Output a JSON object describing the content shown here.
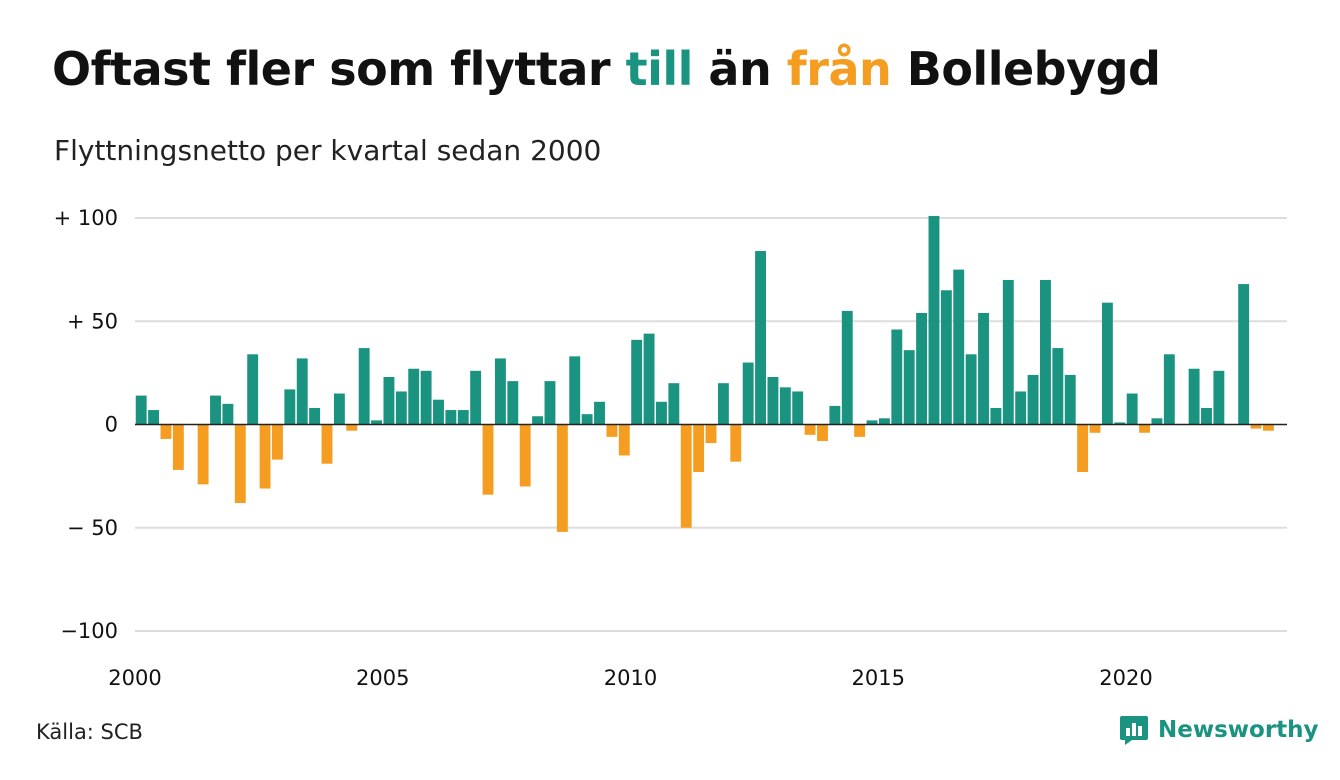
{
  "title": {
    "part1": "Oftast fler som flyttar ",
    "highlight_in": "till",
    "part2": " än ",
    "highlight_out": "från",
    "part3": " Bollebygd"
  },
  "subtitle": "Flyttningsnetto per kvartal sedan 2000",
  "source": "Källa: SCB",
  "brand": {
    "name": "Newsworthy",
    "icon": "newsworthy-chart-bubble-icon"
  },
  "colors": {
    "positive": "#1a9380",
    "negative": "#f59d21",
    "grid": "#dddddd",
    "zero": "#222222"
  },
  "chart_data": {
    "type": "bar",
    "title": "Oftast fler som flyttar till än från Bollebygd",
    "subtitle": "Flyttningsnetto per kvartal sedan 2000",
    "x_start": 2000,
    "x_step": 0.25,
    "xlim": [
      2000,
      2023.25
    ],
    "ylim": [
      -100,
      100
    ],
    "x_ticks": [
      2000,
      2005,
      2010,
      2015,
      2020
    ],
    "x_tick_labels": [
      "2000",
      "2005",
      "2010",
      "2015",
      "2020"
    ],
    "y_ticks": [
      100,
      50,
      0,
      -50,
      -100
    ],
    "y_tick_labels": [
      "+ 100",
      "+  50",
      "0",
      "− 50",
      "−100"
    ],
    "grid": true,
    "values": [
      14,
      7,
      -7,
      -22,
      0,
      -29,
      14,
      10,
      -38,
      34,
      -31,
      -17,
      17,
      32,
      8,
      -19,
      15,
      -3,
      37,
      2,
      23,
      16,
      27,
      26,
      12,
      7,
      7,
      26,
      -34,
      32,
      21,
      -30,
      4,
      21,
      -52,
      33,
      5,
      11,
      -6,
      -15,
      41,
      44,
      11,
      20,
      -50,
      -23,
      -9,
      20,
      -18,
      30,
      84,
      23,
      18,
      16,
      -5,
      -8,
      9,
      55,
      -6,
      2,
      3,
      46,
      36,
      54,
      101,
      65,
      75,
      34,
      54,
      8,
      70,
      16,
      24,
      70,
      37,
      24,
      -23,
      -4,
      59,
      1,
      15,
      -4,
      3,
      34,
      0,
      27,
      8,
      26,
      0,
      68,
      -2,
      -3
    ]
  }
}
